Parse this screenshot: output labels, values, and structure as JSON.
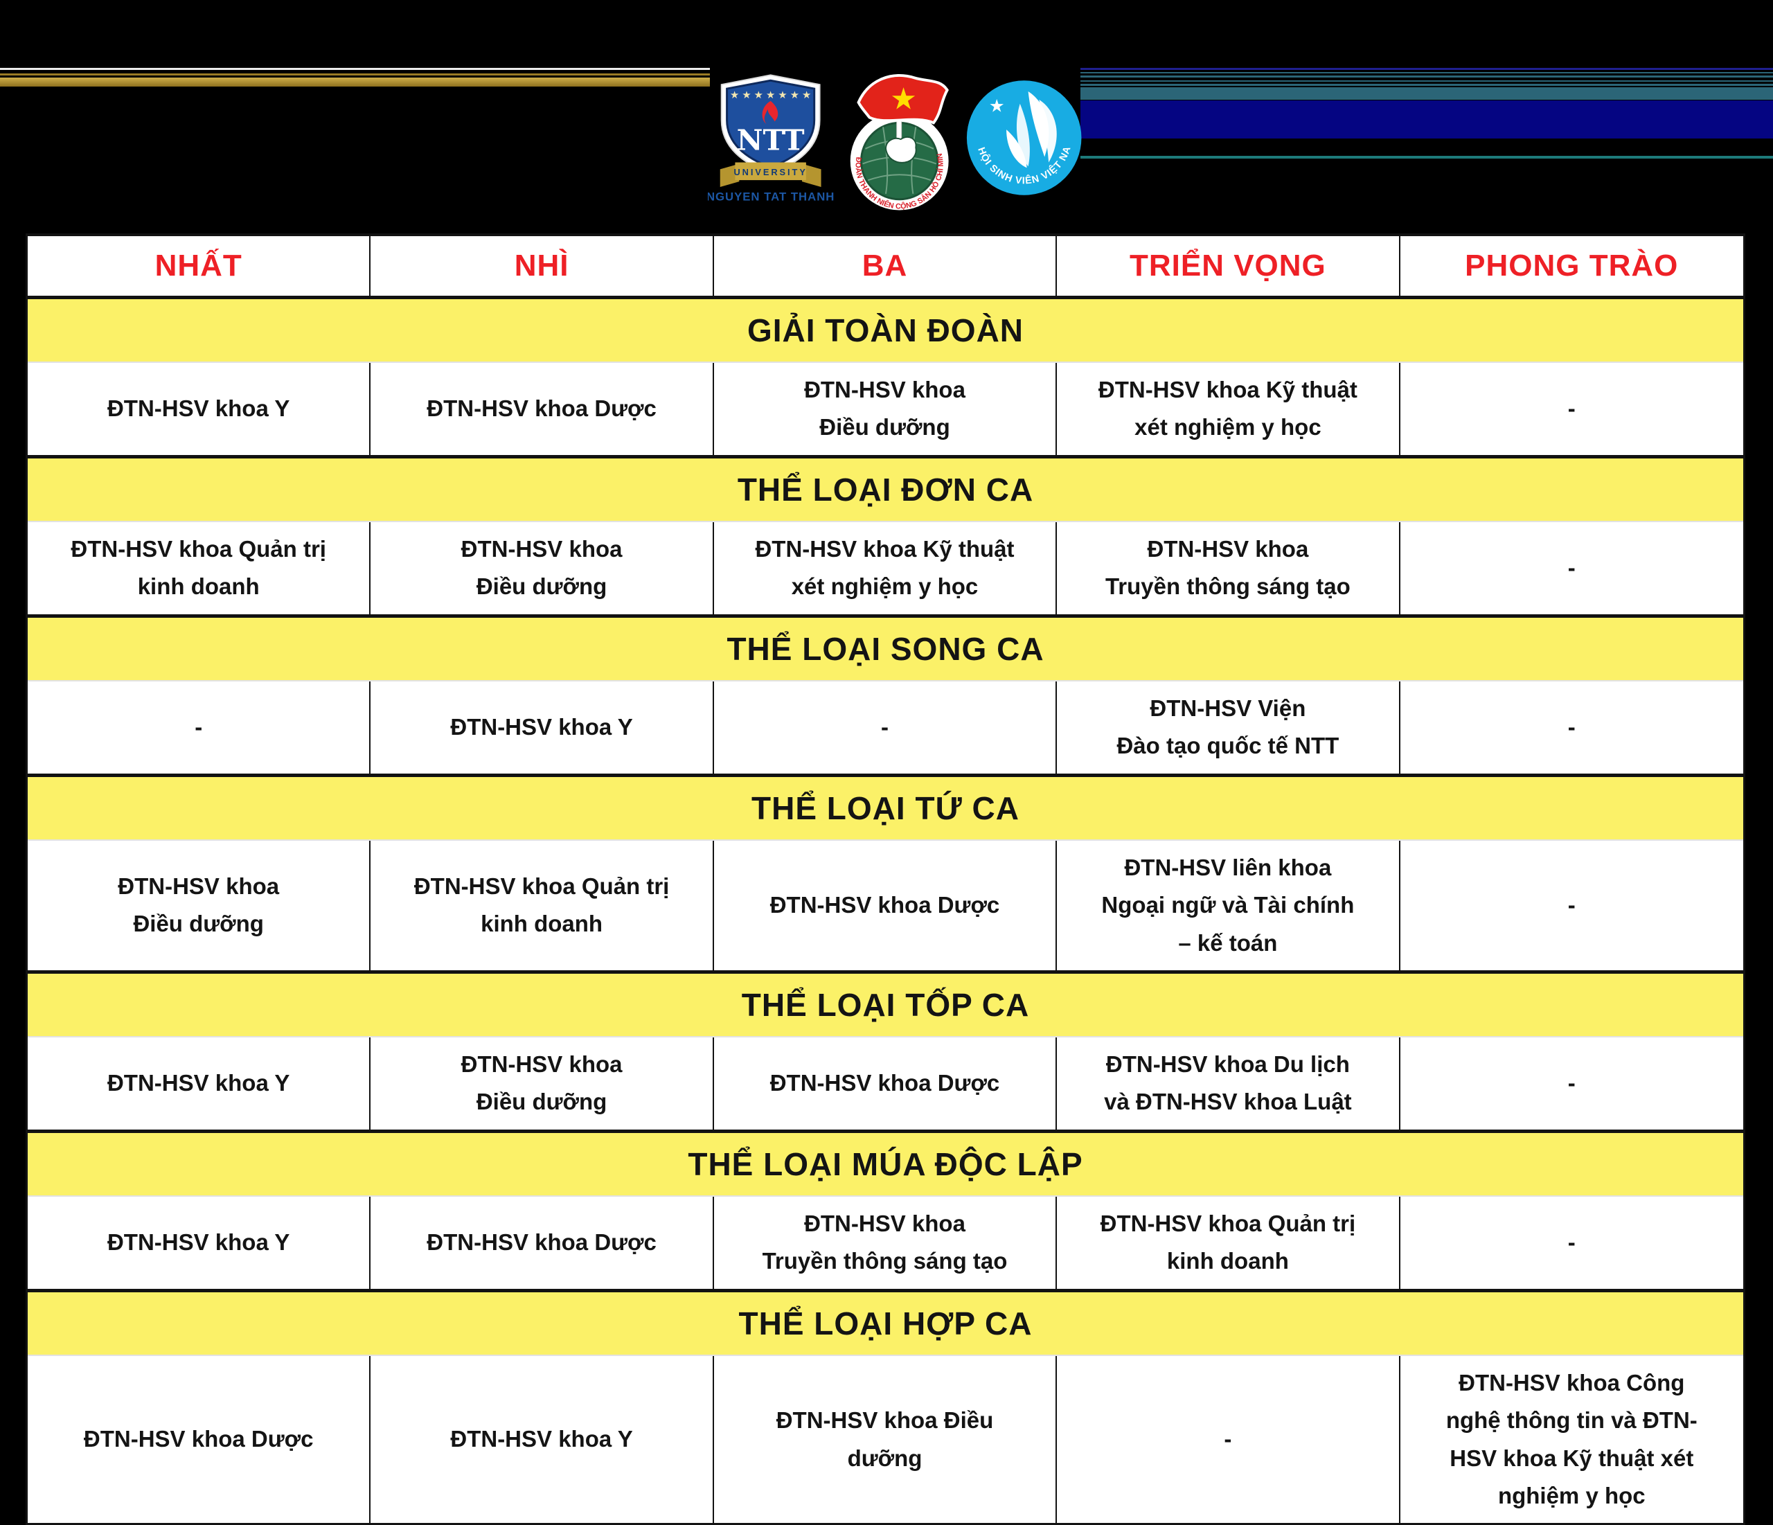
{
  "banner": {
    "logos": [
      {
        "name": "ntt-university-logo",
        "initials": "NTT",
        "banner_text": "UNIVERSITY",
        "caption": "NGUYEN TAT THANH"
      },
      {
        "name": "doan-tncs-hcm-logo",
        "ring_text": "ĐOÀN THANH NIÊN CỘNG SẢN HỒ CHÍ MINH"
      },
      {
        "name": "hoi-sinh-vien-logo",
        "ring_text": "HỘI SINH VIÊN VIỆT NAM"
      }
    ]
  },
  "table": {
    "columns": [
      "NHẤT",
      "NHÌ",
      "BA",
      "TRIỂN VỌNG",
      "PHONG TRÀO"
    ],
    "sections": [
      {
        "title": "GIẢI TOÀN ĐOÀN",
        "cells": [
          "ĐTN-HSV khoa Y",
          "ĐTN-HSV khoa Dược",
          "ĐTN-HSV khoa\nĐiều dưỡng",
          "ĐTN-HSV khoa Kỹ thuật\nxét nghiệm y học",
          "-"
        ]
      },
      {
        "title": "THỂ LOẠI ĐƠN CA",
        "cells": [
          "ĐTN-HSV khoa Quản trị\nkinh doanh",
          "ĐTN-HSV khoa\nĐiều dưỡng",
          "ĐTN-HSV khoa Kỹ thuật\nxét nghiệm y học",
          "ĐTN-HSV khoa\nTruyền thông sáng tạo",
          "-"
        ]
      },
      {
        "title": "THỂ LOẠI SONG CA",
        "cells": [
          "-",
          "ĐTN-HSV khoa Y",
          "-",
          "ĐTN-HSV Viện\nĐào tạo quốc tế NTT",
          "-"
        ]
      },
      {
        "title": "THỂ LOẠI TỨ CA",
        "cells": [
          "ĐTN-HSV khoa\nĐiều dưỡng",
          "ĐTN-HSV khoa Quản trị\nkinh doanh",
          "ĐTN-HSV khoa Dược",
          "ĐTN-HSV liên khoa\nNgoại ngữ và Tài chính\n– kế toán",
          "-"
        ]
      },
      {
        "title": "THỂ LOẠI TỐP CA",
        "cells": [
          "ĐTN-HSV khoa Y",
          "ĐTN-HSV khoa\nĐiều dưỡng",
          "ĐTN-HSV khoa Dược",
          "ĐTN-HSV khoa Du lịch\nvà ĐTN-HSV khoa Luật",
          "-"
        ]
      },
      {
        "title": "THỂ LOẠI MÚA ĐỘC LẬP",
        "cells": [
          "ĐTN-HSV khoa Y",
          "ĐTN-HSV khoa Dược",
          "ĐTN-HSV khoa\nTruyền thông sáng tạo",
          "ĐTN-HSV khoa Quản trị\nkinh doanh",
          "-"
        ]
      },
      {
        "title": "THỂ LOẠI HỢP CA",
        "cells": [
          "ĐTN-HSV khoa Dược",
          "ĐTN-HSV khoa Y",
          "ĐTN-HSV khoa Điều\ndưỡng",
          "-",
          "ĐTN-HSV khoa Công\nnghệ thông tin và ĐTN-\nHSV khoa Kỹ thuật xét\nnghiệm y học"
        ]
      }
    ]
  },
  "colors": {
    "header_text_red": "#ee2026",
    "section_band_yellow": "#fbf168",
    "gold_stripe": "#9a7b24",
    "navy_band": "#050582",
    "teal_band": "#2b6577",
    "ntt_blue": "#1e4f9e",
    "doan_red": "#e2231a",
    "doan_green": "#256b46",
    "hsv_blue": "#18ace3",
    "star_yellow": "#ffde00"
  }
}
